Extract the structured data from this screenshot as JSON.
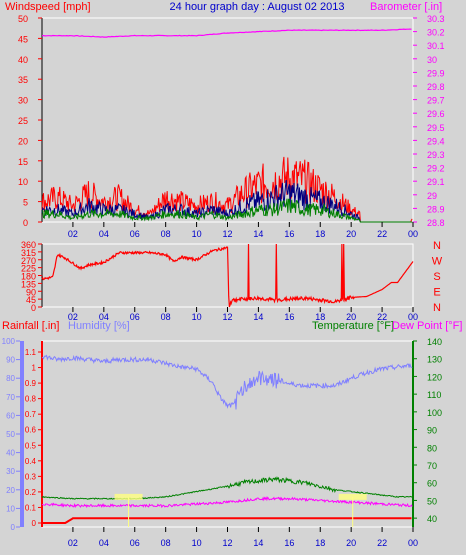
{
  "header": {
    "title": "24 hour graph day : August 02 2013",
    "left_label": "Windspeed [mph]",
    "right_label": "Barometer [.in]"
  },
  "colors": {
    "background": "#d4d4d4",
    "wind": "#ff0000",
    "gust_avg": "#000080",
    "wind_green": "#008000",
    "barometer": "#ff00ff",
    "title": "#0000cc",
    "humidity": "#8080ff",
    "temperature": "#008000",
    "dew_point": "#ff00ff",
    "rain": "#ff0000",
    "solar_marker": "#ffff80"
  },
  "x_ticks": [
    "02",
    "04",
    "06",
    "08",
    "10",
    "12",
    "14",
    "16",
    "18",
    "20",
    "22",
    "00"
  ],
  "chart_data": [
    {
      "type": "line",
      "name": "wind-barometer",
      "y_left_label": "Windspeed [mph]",
      "y_left_ticks": [
        0,
        5,
        10,
        15,
        20,
        25,
        30,
        35,
        40,
        45,
        50
      ],
      "y_left_range": [
        0,
        50
      ],
      "y_right_label": "Barometer [.in]",
      "y_right_ticks": [
        "28.8",
        "28.9",
        "29",
        "29.1",
        "29.2",
        "29.3",
        "29.4",
        "29.5",
        "29.6",
        "29.7",
        "29.8",
        "29.9",
        "30",
        "30.1",
        "30.2",
        "30.3"
      ],
      "y_right_range": [
        28.8,
        30.3
      ],
      "series": [
        {
          "values_hours": [
            0,
            2,
            4,
            6,
            8,
            10,
            12,
            14,
            16,
            18,
            20,
            22,
            24
          ],
          "values": [
            30.17,
            30.17,
            30.16,
            30.17,
            30.17,
            30.17,
            30.19,
            30.2,
            30.21,
            30.21,
            30.21,
            30.21,
            30.22
          ],
          "axis": "right"
        },
        {
          "values_hours": [
            0,
            1,
            2,
            3,
            4,
            5,
            6,
            7,
            8,
            9,
            10,
            11,
            12,
            13,
            14,
            15,
            16,
            17,
            18,
            19,
            20,
            21,
            22,
            23,
            24
          ],
          "values": [
            5,
            6,
            4,
            7,
            5,
            6,
            3,
            2,
            6,
            5,
            4,
            5,
            4,
            7,
            9,
            10,
            11,
            10,
            8,
            6,
            3,
            1,
            0,
            0,
            1
          ],
          "axis": "left"
        },
        {
          "values_hours": [
            0,
            1,
            2,
            3,
            4,
            5,
            6,
            7,
            8,
            9,
            10,
            11,
            12,
            13,
            14,
            15,
            16,
            17,
            18,
            19,
            20,
            21,
            22,
            23,
            24
          ],
          "values": [
            3,
            3,
            2,
            4,
            3,
            3,
            2,
            1,
            3,
            3,
            2,
            3,
            2,
            4,
            5,
            6,
            7,
            6,
            5,
            4,
            2,
            0,
            0,
            0,
            0
          ],
          "axis": "left"
        },
        {
          "values_hours": [
            0,
            1,
            2,
            3,
            4,
            5,
            6,
            7,
            8,
            9,
            10,
            11,
            12,
            13,
            14,
            15,
            16,
            17,
            18,
            19,
            20,
            21,
            22,
            23,
            24
          ],
          "values": [
            2,
            2,
            1,
            2,
            2,
            2,
            1,
            1,
            2,
            2,
            1,
            2,
            1,
            2,
            3,
            3,
            4,
            3,
            3,
            2,
            1,
            0,
            0,
            0,
            0
          ],
          "axis": "left"
        }
      ]
    },
    {
      "type": "line",
      "name": "wind-direction",
      "y_left_ticks": [
        0,
        45,
        90,
        135,
        180,
        225,
        270,
        315,
        360
      ],
      "y_left_range": [
        0,
        360
      ],
      "y_right_labels": [
        "N",
        "W",
        "S",
        "E",
        "N"
      ],
      "series": [
        {
          "values_hours": [
            0,
            0.7,
            1,
            1.5,
            2,
            2.5,
            3,
            4,
            5,
            6,
            7,
            8,
            8.5,
            9,
            10,
            11,
            12,
            12.1,
            12.3,
            13,
            14,
            15,
            16,
            17,
            18,
            19,
            20,
            21,
            22,
            22.6,
            23,
            24
          ],
          "values": [
            160,
            170,
            300,
            280,
            250,
            220,
            240,
            255,
            310,
            310,
            310,
            300,
            260,
            285,
            270,
            320,
            340,
            0,
            40,
            45,
            50,
            40,
            45,
            50,
            40,
            30,
            55,
            60,
            100,
            140,
            140,
            260
          ]
        }
      ]
    },
    {
      "type": "line",
      "name": "rain-humidity-temperature",
      "left_label_rain": "Rainfall [.in]",
      "left_label_humidity": "Humidity [%]",
      "right_label_temperature": "Temperature [°F]",
      "right_label_dew": "Dew Point [°F]",
      "rain_ticks": [
        "0",
        "0.1",
        "0.2",
        "0.3",
        "0.4",
        "0.5",
        "0.6",
        "0.7",
        "0.8",
        "0.9",
        "1",
        "1.1"
      ],
      "humidity_ticks": [
        0,
        10,
        20,
        30,
        40,
        50,
        60,
        70,
        80,
        90,
        100
      ],
      "temperature_ticks": [
        40,
        50,
        60,
        70,
        80,
        90,
        100,
        110,
        120,
        130,
        140
      ],
      "series": [
        {
          "name": "Humidity",
          "values_hours": [
            0,
            1,
            2,
            3,
            4,
            5,
            6,
            7,
            8,
            9,
            10,
            11,
            11.5,
            12,
            12.5,
            13,
            14,
            15,
            16,
            17,
            18,
            19,
            20,
            21,
            22,
            23,
            24
          ],
          "values": [
            92,
            90,
            91,
            90,
            89,
            90,
            90,
            90,
            88,
            86,
            85,
            78,
            70,
            65,
            66,
            75,
            80,
            80,
            77,
            76,
            76,
            76,
            80,
            83,
            85,
            86,
            87
          ]
        },
        {
          "name": "Temperature",
          "values_hours": [
            0,
            2,
            4,
            6,
            8,
            10,
            12,
            13,
            14,
            15,
            16,
            17,
            18,
            19,
            20,
            21,
            22,
            23,
            24
          ],
          "values": [
            52,
            51,
            51,
            51,
            52,
            55,
            58,
            60,
            61,
            62,
            61,
            60,
            58,
            56,
            55,
            54,
            53,
            52,
            52
          ]
        },
        {
          "name": "Dew Point",
          "values_hours": [
            0,
            2,
            4,
            6,
            8,
            10,
            12,
            14,
            16,
            18,
            20,
            22,
            24
          ],
          "values": [
            48,
            47,
            47,
            47,
            47,
            48,
            49,
            51,
            51,
            50,
            49,
            48,
            47
          ]
        },
        {
          "name": "Rainfall",
          "values_hours": [
            0,
            1.5,
            2,
            6,
            8,
            10,
            12,
            14,
            16,
            18,
            20,
            22,
            23.9,
            24
          ],
          "values": [
            0,
            0,
            0.03,
            0.03,
            0.03,
            0.03,
            0.03,
            0.03,
            0.03,
            0.03,
            0.03,
            0.03,
            0.03,
            0
          ]
        }
      ]
    }
  ]
}
